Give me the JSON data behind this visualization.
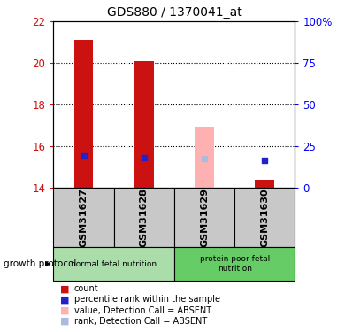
{
  "title": "GDS880 / 1370041_at",
  "samples": [
    "GSM31627",
    "GSM31628",
    "GSM31629",
    "GSM31630"
  ],
  "ylim": [
    14,
    22
  ],
  "yticks": [
    14,
    16,
    18,
    20,
    22
  ],
  "yticks_right": [
    0,
    25,
    50,
    75,
    100
  ],
  "bar_bottom": 14,
  "bar_tops_red": [
    21.1,
    20.1,
    null,
    14.4
  ],
  "bar_tops_pink": [
    null,
    null,
    16.9,
    null
  ],
  "blue_squares_y": [
    15.55,
    15.45,
    null,
    15.3
  ],
  "light_blue_squares_y": [
    null,
    null,
    15.4,
    null
  ],
  "groups": [
    {
      "label": "normal fetal nutrition",
      "samples": [
        0,
        1
      ],
      "color": "#aaddaa"
    },
    {
      "label": "protein poor fetal\nnutrition",
      "samples": [
        2,
        3
      ],
      "color": "#66cc66"
    }
  ],
  "bar_width": 0.32,
  "red_color": "#cc1111",
  "pink_color": "#ffb0b0",
  "blue_color": "#2222cc",
  "light_blue_color": "#aabbdd",
  "growth_protocol_label": "growth protocol",
  "legend_items": [
    {
      "label": "count",
      "color": "#cc1111"
    },
    {
      "label": "percentile rank within the sample",
      "color": "#2222cc"
    },
    {
      "label": "value, Detection Call = ABSENT",
      "color": "#ffb0b0"
    },
    {
      "label": "rank, Detection Call = ABSENT",
      "color": "#aabbdd"
    }
  ],
  "sample_bg": "#c8c8c8",
  "grid_dotted_at": [
    16,
    18,
    20
  ]
}
